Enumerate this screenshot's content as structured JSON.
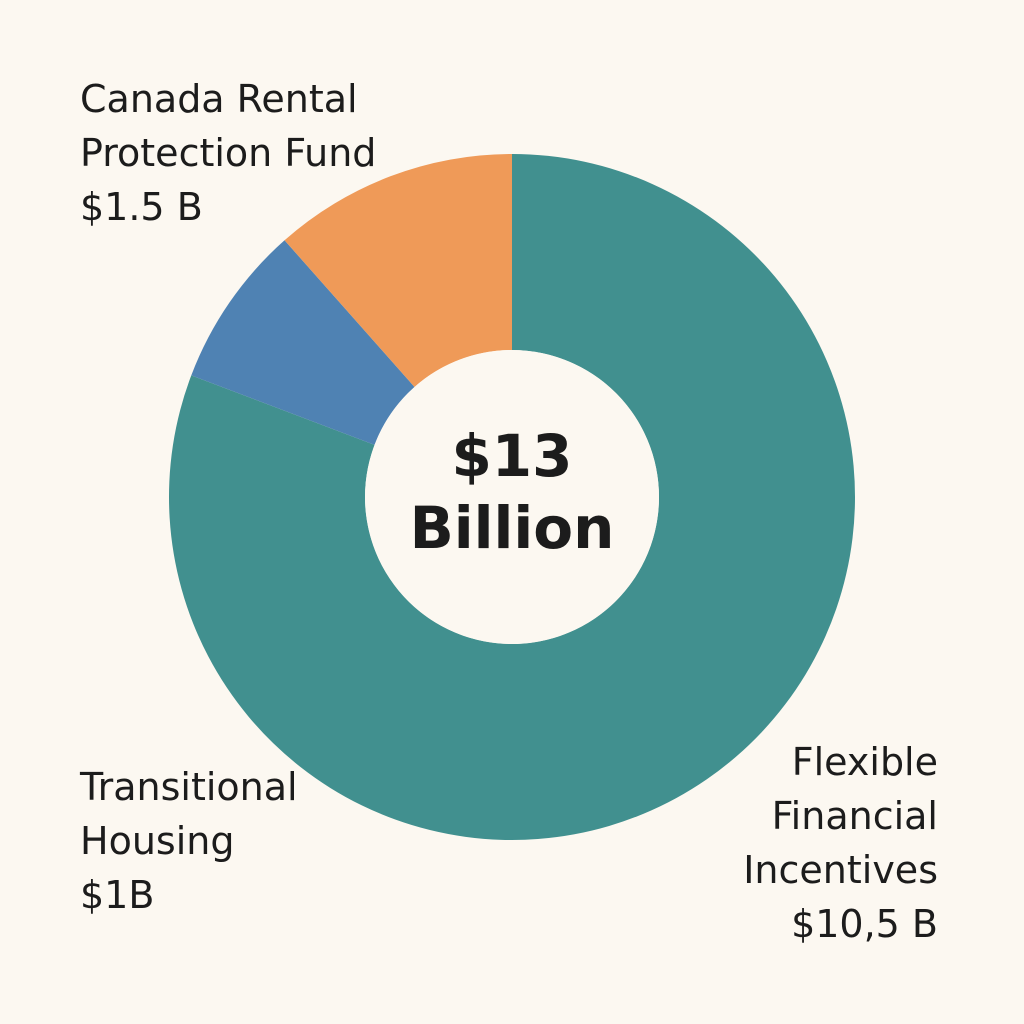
{
  "chart_data": {
    "type": "donut",
    "categories": [
      "Flexible\nFinancial\nIncentives",
      "Transitional\nHousing",
      "Canada Rental\nProtection Fund"
    ],
    "values": [
      10.5,
      1,
      1.5
    ],
    "value_labels": [
      "$10,5 B",
      "$1B",
      "$1.5 B"
    ],
    "colors": [
      "#41908f",
      "#4f82b3",
      "#ef9a58"
    ],
    "center_label": [
      "$13",
      "Billion"
    ]
  }
}
